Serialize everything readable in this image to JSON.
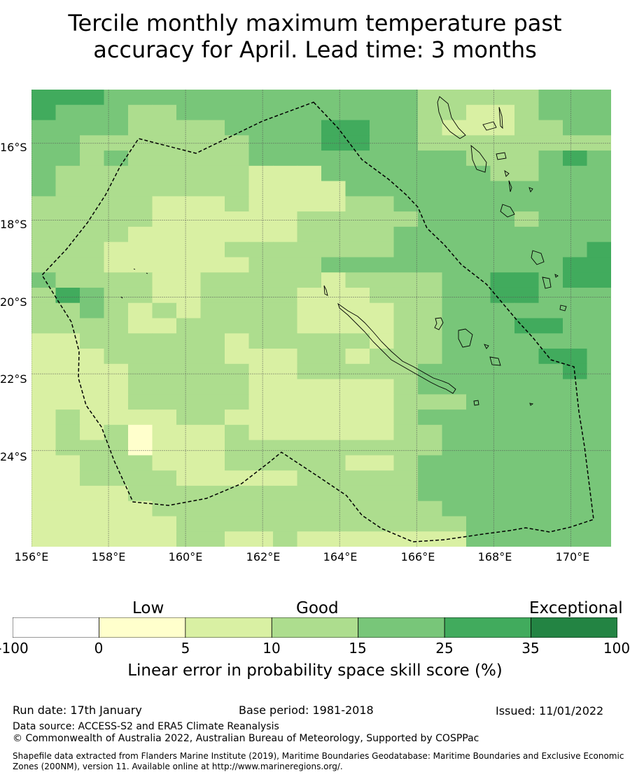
{
  "title": {
    "line1": "Tercile monthly maximum temperature past",
    "line2": "accuracy for April. Lead time: 3 months"
  },
  "map": {
    "lon_range": [
      156,
      171.05
    ],
    "lat_range": [
      -26.5,
      -14.6
    ],
    "x_ticks": [
      "156°E",
      "158°E",
      "160°E",
      "162°E",
      "164°E",
      "166°E",
      "168°E",
      "170°E"
    ],
    "y_ticks": [
      "16°S",
      "18°S",
      "20°S",
      "22°S",
      "24°S"
    ],
    "grid": true,
    "cell_size_deg": [
      0.833,
      0.556
    ],
    "skill_grid": [
      "444333333333333322222333",
      "433322333333333322112333",
      "333322223333443321112233",
      "332222222333443322222222",
      "332322222333333333222343",
      "322222222111333333322333",
      "322222222111133333333333",
      "222221112111122333333333",
      "222221111112222233332333",
      "222211111112222333333333",
      "222111112222222333333334",
      "222111111222333333333344",
      "322221122222122223344344",
      "243221122221112223344333",
      "223212122221111223333333",
      "222211222221111223334433",
      "112222221222221223333333",
      "111222221112212223333443",
      "111122222112222233333343",
      "111122222111111233333333",
      "111122222111111222333333",
      "121111221111111233333333",
      "121201112111111223333333",
      "122201112222222223333333",
      "112221112222211233333333",
      "112222111112222233333333",
      "111122222222222233333333",
      "111112222222222223333333",
      "111111222222222222333333",
      "111111221121111111333333"
    ],
    "boundary_name": "Maritime boundary (dashed)"
  },
  "colorbar": {
    "categories": [
      "Low",
      "Good",
      "Exceptional"
    ],
    "ticks": [
      "-100",
      "0",
      "5",
      "10",
      "15",
      "25",
      "35",
      "100"
    ],
    "colors": [
      "#ffffff",
      "#ffffcc",
      "#d9f0a3",
      "#addd8e",
      "#78c679",
      "#41ab5d",
      "#238443"
    ],
    "label": "Linear error in probability space skill score (%)"
  },
  "footer": {
    "run_date": "Run date: 17th January",
    "base_period": "Base period: 1981-2018",
    "issued": "Issued: 11/01/2022",
    "data_source": "Data source: ACCESS-S2 and ERA5 Climate Reanalysis",
    "copyright": "© Commonwealth of Australia 2022, Australian Bureau of Meteorology, Supported by COSPPac",
    "shapefile": "Shapefile data extracted from Flanders Marine Institute (2019), Maritime Boundaries Geodatabase: Maritime Boundaries and Exclusive Economic Zones (200NM), version 11. Available online at http://www.marineregions.org/."
  }
}
